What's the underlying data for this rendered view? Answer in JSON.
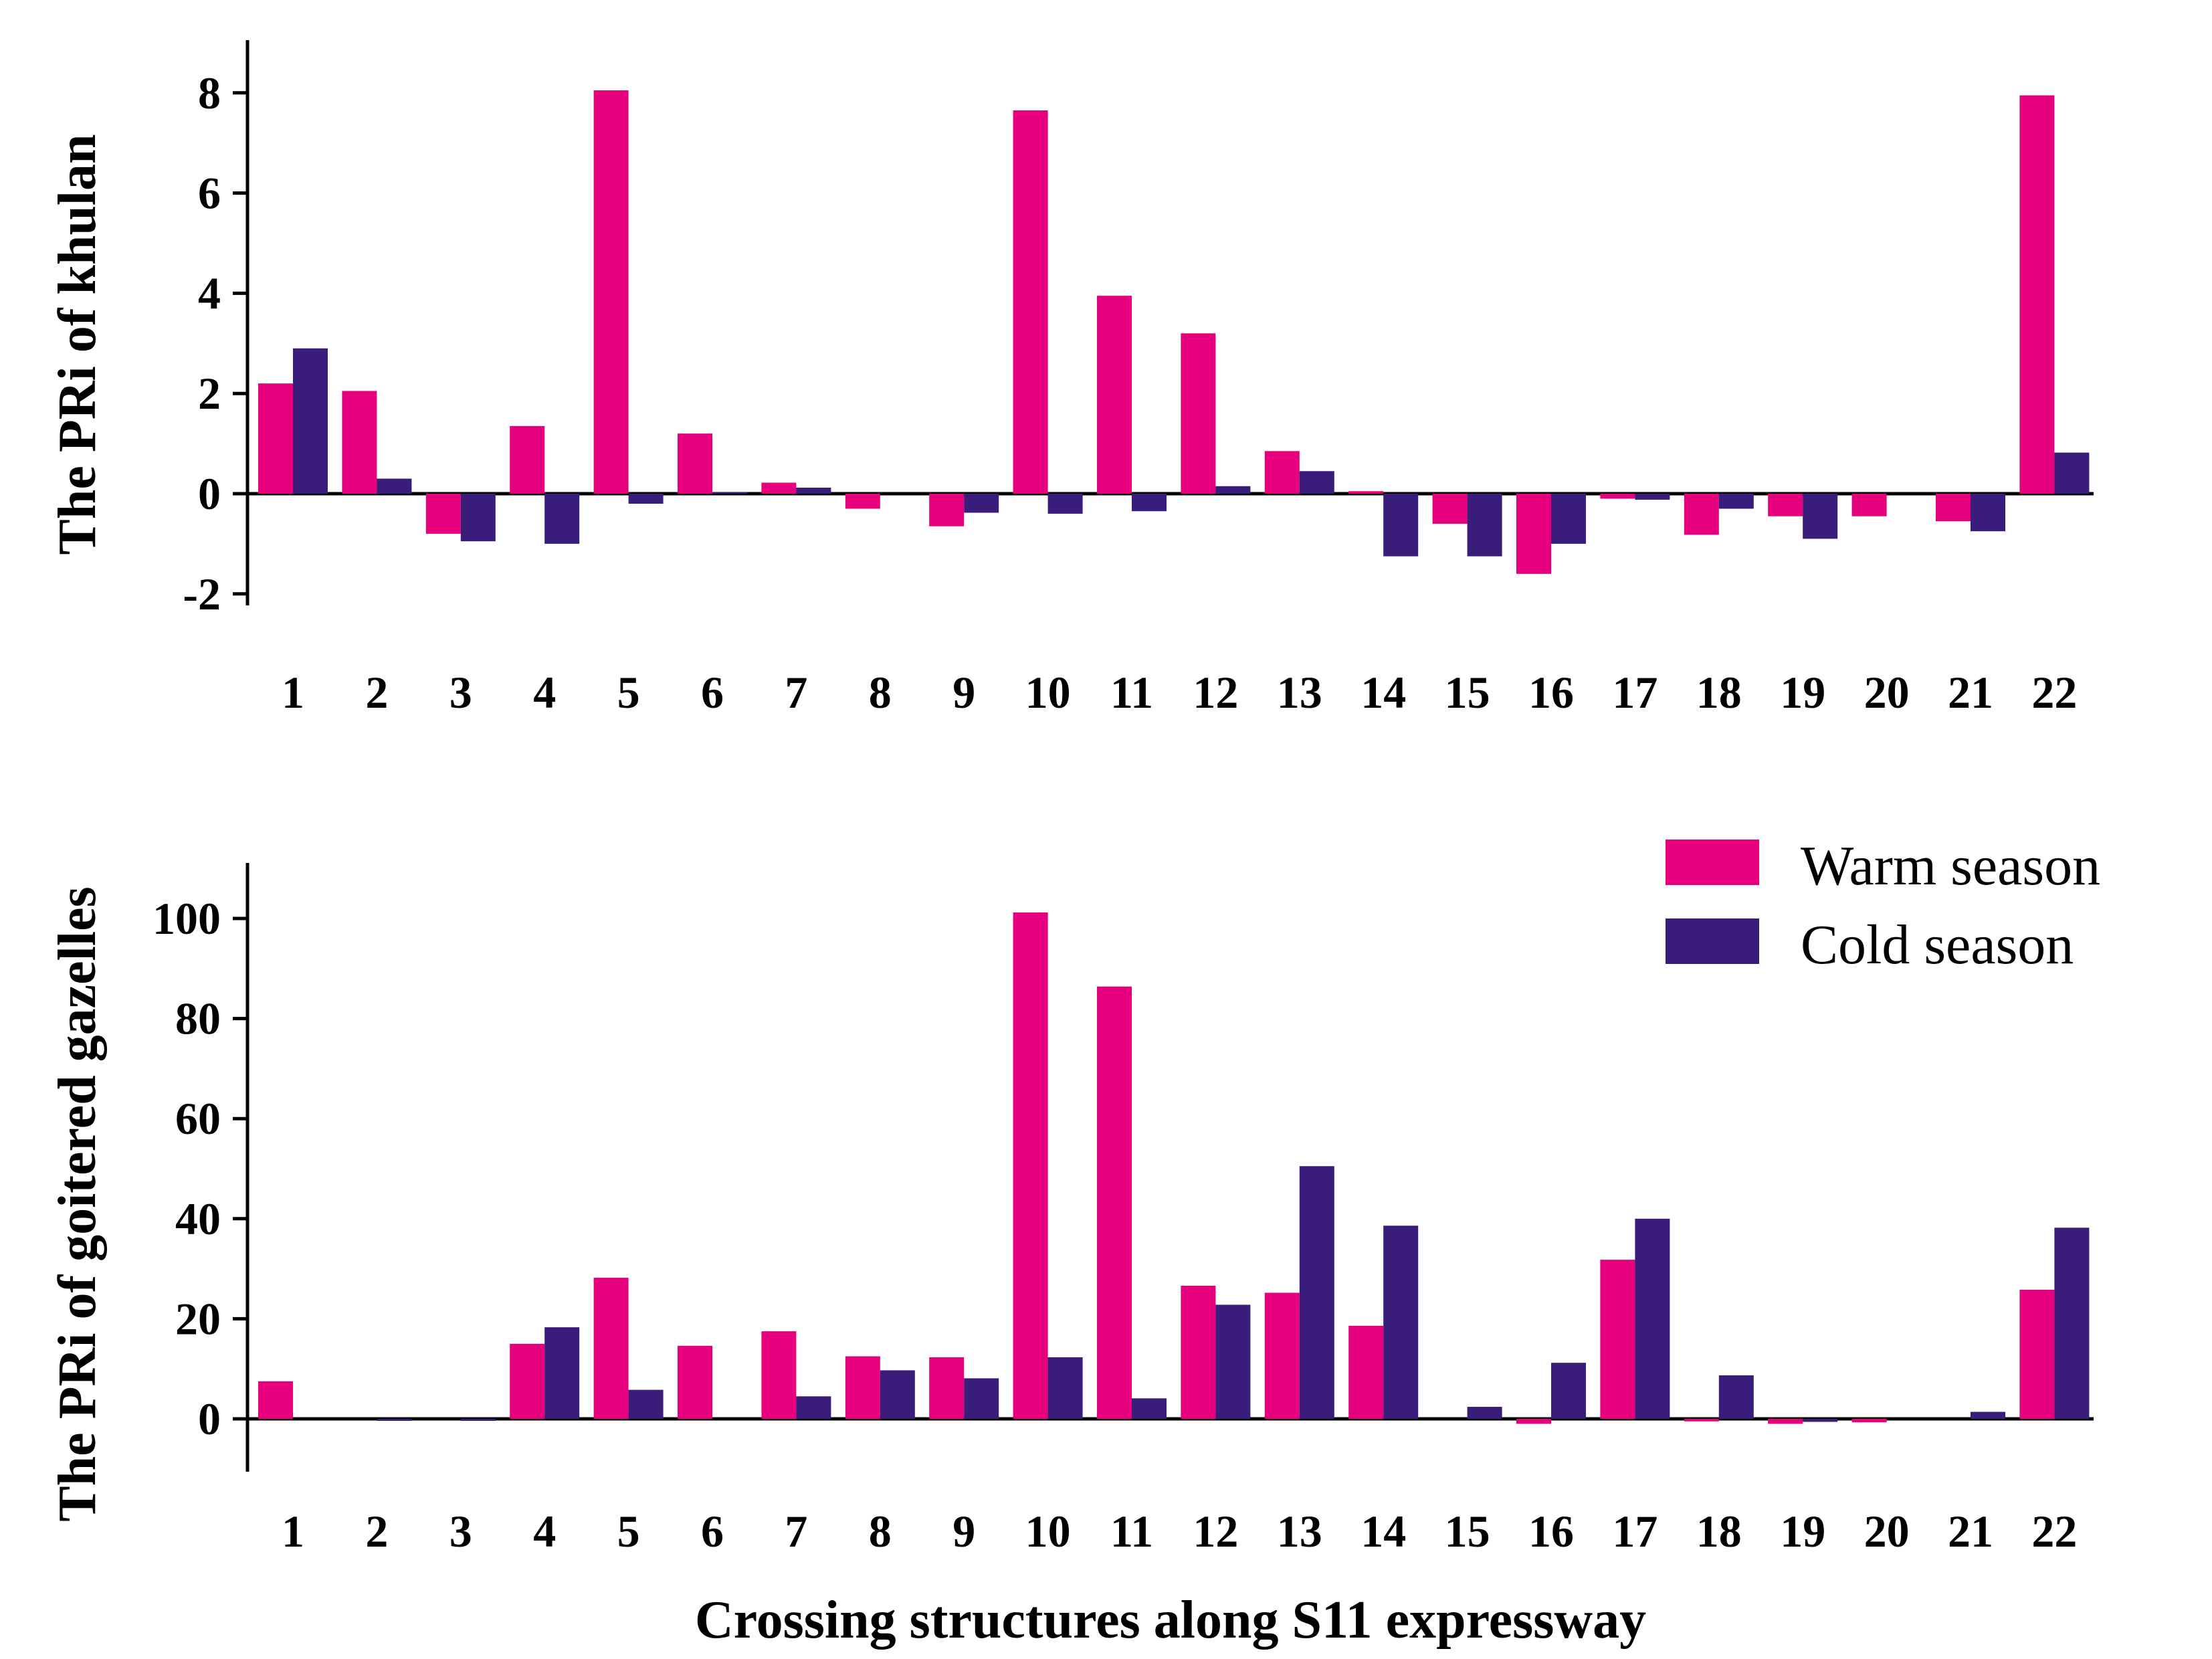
{
  "chart_data": [
    {
      "type": "bar",
      "ylabel": "The PRi of khulan",
      "xlabel": "",
      "categories": [
        "1",
        "2",
        "3",
        "4",
        "5",
        "6",
        "7",
        "8",
        "9",
        "10",
        "11",
        "12",
        "13",
        "14",
        "15",
        "16",
        "17",
        "18",
        "19",
        "20",
        "21",
        "22"
      ],
      "ylim": [
        -2.2,
        9
      ],
      "yticks": [
        -2,
        0,
        2,
        4,
        6,
        8
      ],
      "ytick_labels": [
        "-2",
        "0",
        "2",
        "4",
        "6",
        "8"
      ],
      "grid": false,
      "series": [
        {
          "name": "Warm season",
          "color": "#E6007E",
          "values": [
            2.2,
            2.05,
            -0.8,
            1.35,
            8.05,
            1.2,
            0.22,
            -0.3,
            -0.65,
            7.65,
            3.95,
            3.2,
            0.85,
            0.05,
            -0.6,
            -1.6,
            -0.1,
            -0.82,
            -0.45,
            -0.45,
            -0.55,
            7.95
          ]
        },
        {
          "name": "Cold season",
          "color": "#3A1C7A",
          "values": [
            2.9,
            0.3,
            -0.95,
            -1.0,
            -0.2,
            0.03,
            0.12,
            0.0,
            -0.38,
            -0.4,
            -0.35,
            0.15,
            0.45,
            -1.25,
            -1.25,
            -1.0,
            -0.12,
            -0.3,
            -0.9,
            0.0,
            -0.75,
            0.82
          ]
        }
      ]
    },
    {
      "type": "bar",
      "ylabel": "The PRi of goitered gazelles",
      "xlabel": "Crossing structures along S11 expressway",
      "categories": [
        "1",
        "2",
        "3",
        "4",
        "5",
        "6",
        "7",
        "8",
        "9",
        "10",
        "11",
        "12",
        "13",
        "14",
        "15",
        "16",
        "17",
        "18",
        "19",
        "20",
        "21",
        "22"
      ],
      "ylim": [
        -11,
        111
      ],
      "yticks": [
        0,
        20,
        40,
        60,
        80,
        100
      ],
      "ytick_labels": [
        "0",
        "20",
        "40",
        "60",
        "80",
        "100"
      ],
      "grid": false,
      "legend_position": "top-right",
      "series": [
        {
          "name": "Warm season",
          "color": "#E6007E",
          "values": [
            7.5,
            0,
            0,
            15,
            28.2,
            14.6,
            17.5,
            12.5,
            12.3,
            101.2,
            86.4,
            26.6,
            25.2,
            18.6,
            0,
            -1,
            31.8,
            -0.5,
            -1,
            -0.7,
            0,
            25.8
          ]
        },
        {
          "name": "Cold season",
          "color": "#3A1C7A",
          "values": [
            0,
            -0.4,
            -0.4,
            18.3,
            5.8,
            0,
            4.5,
            9.7,
            8.1,
            12.3,
            4.1,
            22.8,
            50.5,
            38.6,
            2.4,
            11.2,
            40,
            8.7,
            -0.6,
            0,
            1.4,
            38.2
          ]
        }
      ]
    }
  ]
}
